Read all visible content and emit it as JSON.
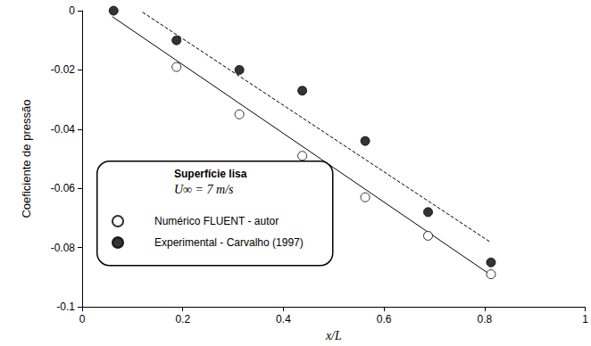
{
  "chart_data": {
    "type": "scatter",
    "x_label": "x/L",
    "y_label": "Coeficiente de pressão",
    "annotations": [
      "Superfície lisa",
      "U∞ = 7 m/s"
    ],
    "xlim": [
      0,
      1
    ],
    "xticks": [
      0,
      0.2,
      0.4,
      0.6,
      0.8,
      1
    ],
    "ylim": [
      -0.1,
      0
    ],
    "yticks": [
      -0.1,
      -0.08,
      -0.06,
      -0.04,
      -0.02,
      0
    ],
    "grid": false,
    "legend": "lower left",
    "series": [
      {
        "name": "Numérico FLUENT - autor",
        "type": "scatter",
        "marker": "open circle",
        "color": "#000000",
        "x": [
          0.1875,
          0.3125,
          0.4375,
          0.5625,
          0.6875,
          0.8125
        ],
        "values": [
          -0.019,
          -0.035,
          -0.049,
          -0.063,
          -0.076,
          -0.089
        ]
      },
      {
        "name": "Experimental - Carvalho (1997)",
        "type": "scatter",
        "marker": "filled circle",
        "color": "#000000",
        "x": [
          0.0625,
          0.1875,
          0.3125,
          0.4375,
          0.5625,
          0.6875,
          0.8125
        ],
        "values": [
          0,
          -0.01,
          -0.02,
          -0.027,
          -0.044,
          -0.068,
          -0.085
        ]
      },
      {
        "type": "line",
        "line_style": "solid",
        "color": "#000000",
        "x": [
          0.06,
          0.81
        ],
        "values": [
          -0.002,
          -0.089
        ]
      },
      {
        "type": "line",
        "line_style": "dashed",
        "color": "#000000",
        "x": [
          0.12,
          0.81
        ],
        "values": [
          -0.0005,
          -0.078
        ]
      }
    ]
  }
}
